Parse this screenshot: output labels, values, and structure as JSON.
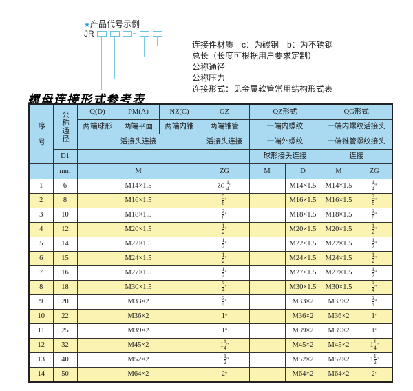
{
  "example": {
    "title": "产品代号示例",
    "star_icon": "star",
    "prefix": "JR",
    "dash": "-",
    "labels": [
      "连接件材质　c：为碳钢　b：为不锈钢",
      "总长（长度可根据用户要求定制）",
      "公称通径",
      "公称压力",
      "连接形式：见金属软管常用结构形式表"
    ]
  },
  "table_title": "螺母连接形式参考表",
  "header": {
    "seq": "序　号",
    "dn": "公称通径",
    "d1": "D1",
    "mm": "mm",
    "qd": "Q(D)",
    "pm": "PM(A)",
    "nz": "NZ(C)",
    "gz": "GZ",
    "qz": "QZ形式",
    "qg": "QG形式",
    "qd2": "两端球形",
    "pm2": "两端平面",
    "nz2": "两端内锥",
    "gz2": "两端锥管",
    "qz2": "一端内螺纹",
    "qg2": "一端内螺纹活接头",
    "huo": "活接头连接",
    "gz3": "活接头连接",
    "qz3": "一端外螺纹",
    "qg3": "一端锥管螺纹接头",
    "qz4": "球形接头连接",
    "qg4": "连接",
    "m": "M",
    "zg": "ZG",
    "qzm": "M",
    "qzd": "D",
    "qgm": "M",
    "qgzg": "ZG"
  },
  "colors": {
    "header": "#a9daf2",
    "alt_row": "#fbf3b2"
  },
  "rows": [
    {
      "n": "1",
      "dn": "6",
      "m": "M14×1.5",
      "gz": {
        "pre": "ZG",
        "w": "",
        "num": "1",
        "den": "4"
      },
      "d": "M14×1.5",
      "qgm": "M14×1.5",
      "zg": {
        "w": "",
        "num": "1",
        "den": "4"
      }
    },
    {
      "n": "2",
      "dn": "8",
      "m": "M16×1.5",
      "gz": {
        "w": "",
        "num": "3",
        "den": "8"
      },
      "d": "M16×1.5",
      "qgm": "M16×1.5",
      "zg": {
        "w": "",
        "num": "3",
        "den": "8"
      }
    },
    {
      "n": "3",
      "dn": "10",
      "m": "M18×1.5",
      "gz": {
        "w": "",
        "num": "3",
        "den": "8"
      },
      "d": "M18×1.5",
      "qgm": "M18×1.5",
      "zg": {
        "w": "",
        "num": "3",
        "den": "8"
      }
    },
    {
      "n": "4",
      "dn": "12",
      "m": "M20×1.5",
      "gz": {
        "w": "",
        "num": "1",
        "den": "2"
      },
      "d": "M20×1.5",
      "qgm": "M20×1.5",
      "zg": {
        "w": "",
        "num": "1",
        "den": "2"
      }
    },
    {
      "n": "5",
      "dn": "14",
      "m": "M22×1.5",
      "gz": {
        "w": "",
        "num": "1",
        "den": "2"
      },
      "d": "M22×1.5",
      "qgm": "M22×1.5",
      "zg": {
        "w": "",
        "num": "1",
        "den": "2"
      }
    },
    {
      "n": "6",
      "dn": "15",
      "m": "M24×1.5",
      "gz": {
        "w": "",
        "num": "1",
        "den": "2"
      },
      "d": "M24×1.5",
      "qgm": "M24×1.5",
      "zg": {
        "w": "",
        "num": "1",
        "den": "2"
      }
    },
    {
      "n": "7",
      "dn": "16",
      "m": "M27×1.5",
      "gz": {
        "w": "",
        "num": "1",
        "den": "2"
      },
      "d": "M27×1.5",
      "qgm": "M27×1.5",
      "zg": {
        "w": "",
        "num": "1",
        "den": "2"
      }
    },
    {
      "n": "8",
      "dn": "18",
      "m": "M30×1.5",
      "gz": {
        "w": "",
        "num": "3",
        "den": "4"
      },
      "d": "M30×1.5",
      "qgm": "M30×1.5",
      "zg": {
        "w": "",
        "num": "3",
        "den": "4"
      }
    },
    {
      "n": "9",
      "dn": "20",
      "m": "M33×2",
      "gz": {
        "w": "",
        "num": "3",
        "den": "4"
      },
      "d": "M33×2",
      "qgm": "M33×2",
      "zg": {
        "w": "",
        "num": "3",
        "den": "4"
      }
    },
    {
      "n": "10",
      "dn": "22",
      "m": "M36×2",
      "gz": {
        "w": "1"
      },
      "d": "M36×2",
      "qgm": "M36×2",
      "zg": {
        "w": "1"
      }
    },
    {
      "n": "11",
      "dn": "25",
      "m": "M39×2",
      "gz": {
        "w": "1"
      },
      "d": "M39×2",
      "qgm": "M39×2",
      "zg": {
        "w": "1"
      }
    },
    {
      "n": "12",
      "dn": "32",
      "m": "M45×2",
      "gz": {
        "w": "1",
        "num": "1",
        "den": "4"
      },
      "d": "M45×2",
      "qgm": "M45×2",
      "zg": {
        "w": "1",
        "num": "1",
        "den": "4"
      }
    },
    {
      "n": "13",
      "dn": "40",
      "m": "M52×2",
      "gz": {
        "w": "1",
        "num": "1",
        "den": "2"
      },
      "d": "M52×2",
      "qgm": "M52×2",
      "zg": {
        "w": "1",
        "num": "1",
        "den": "2"
      }
    },
    {
      "n": "14",
      "dn": "50",
      "m": "M64×2",
      "gz": {
        "w": "2"
      },
      "d": "M64×2",
      "qgm": "M64×2",
      "zg": {
        "w": "2"
      }
    }
  ],
  "inch_mark": "\""
}
